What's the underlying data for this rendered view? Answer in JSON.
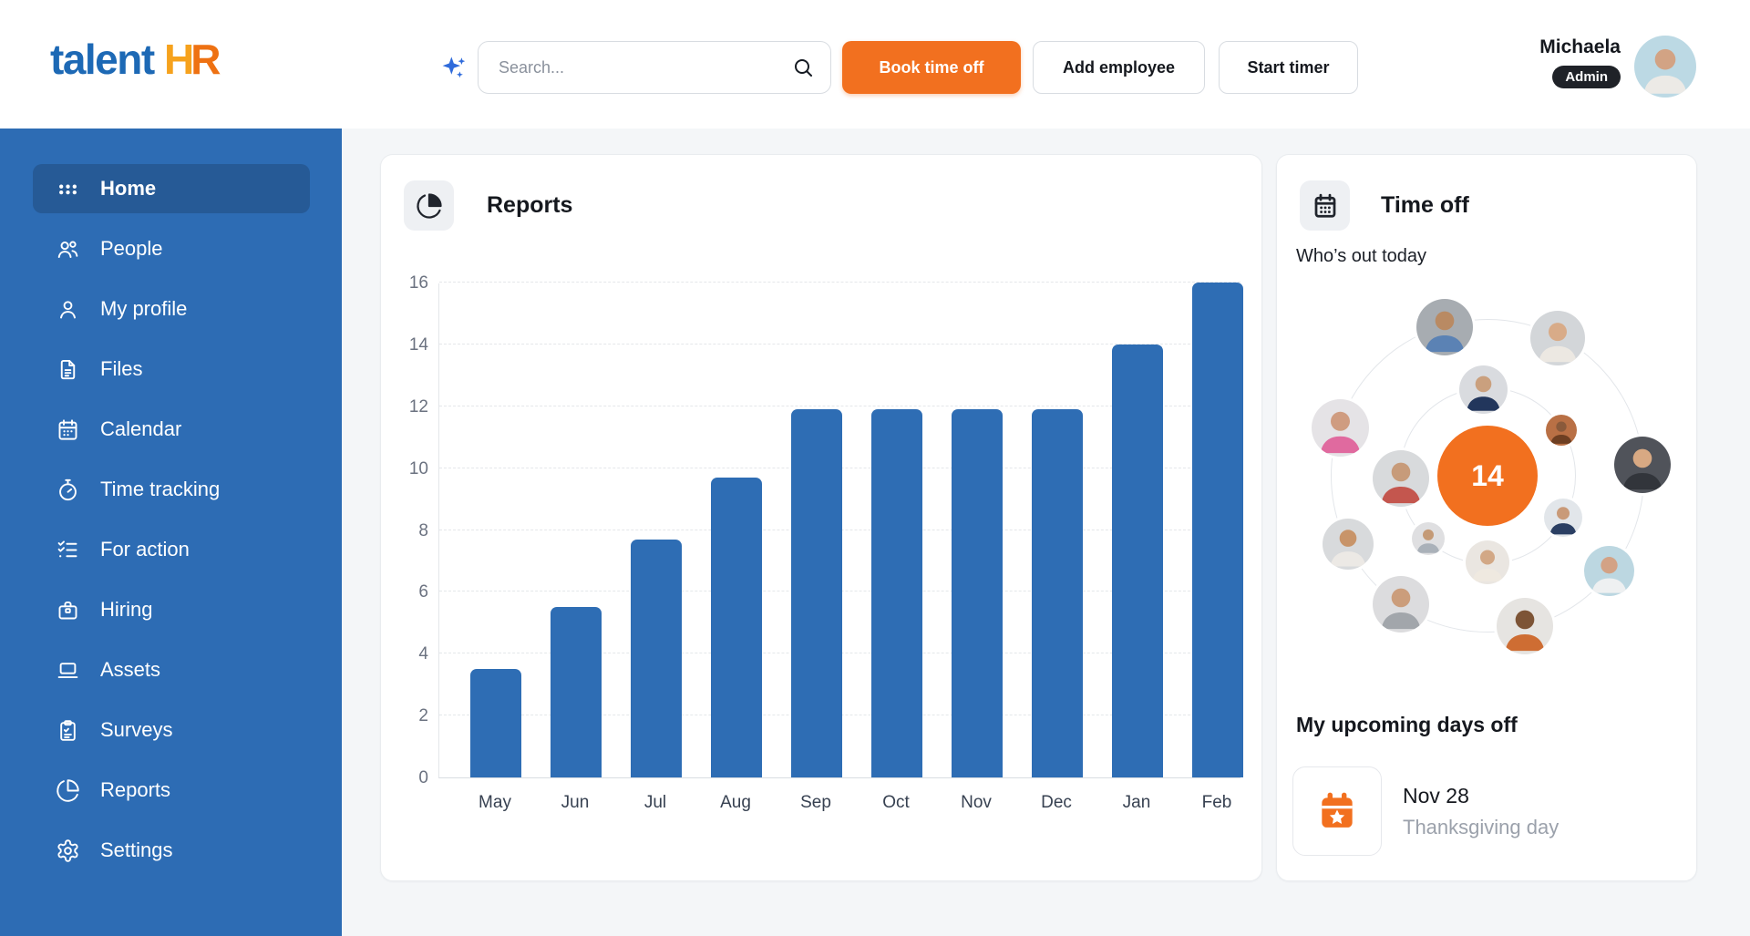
{
  "brand": {
    "part1": "talent",
    "part2_h": "H",
    "part2_r": "R"
  },
  "topbar": {
    "search_placeholder": "Search...",
    "buttons": [
      {
        "label": "Book time off",
        "variant": "primary"
      },
      {
        "label": "Add employee",
        "variant": "ghost"
      },
      {
        "label": "Start timer",
        "variant": "ghost"
      }
    ],
    "user": {
      "name": "Michaela",
      "role_badge": "Admin",
      "avatar": {
        "bg": "#bcd9e4",
        "skin": "#d2a384",
        "top": "#eceae6"
      }
    }
  },
  "sidebar": {
    "items": [
      {
        "label": "Home",
        "icon": "grid-dots",
        "active": true
      },
      {
        "label": "People",
        "icon": "users",
        "active": false
      },
      {
        "label": "My profile",
        "icon": "user",
        "active": false
      },
      {
        "label": "Files",
        "icon": "file",
        "active": false
      },
      {
        "label": "Calendar",
        "icon": "calendar",
        "active": false
      },
      {
        "label": "Time tracking",
        "icon": "timer",
        "active": false
      },
      {
        "label": "For action",
        "icon": "list-checks",
        "active": false
      },
      {
        "label": "Hiring",
        "icon": "briefcase",
        "active": false
      },
      {
        "label": "Assets",
        "icon": "laptop",
        "active": false
      },
      {
        "label": "Surveys",
        "icon": "clipboard",
        "active": false
      },
      {
        "label": "Reports",
        "icon": "pie-chart",
        "active": false
      },
      {
        "label": "Settings",
        "icon": "gear",
        "active": false
      }
    ]
  },
  "reports_card": {
    "title": "Reports",
    "icon": "pie-chart"
  },
  "chart_data": {
    "type": "bar",
    "categories": [
      "May",
      "Jun",
      "Jul",
      "Aug",
      "Sep",
      "Oct",
      "Nov",
      "Dec",
      "Jan",
      "Feb"
    ],
    "values": [
      3.5,
      5.5,
      7.7,
      9.7,
      11.9,
      11.9,
      11.9,
      11.9,
      14,
      16
    ],
    "title": "Reports",
    "xlabel": "",
    "ylabel": "",
    "ylim": [
      0,
      16
    ],
    "ytick_step": 2,
    "grid": "horizontal-dashed",
    "legend": "none",
    "bar_color": "#2e6db4"
  },
  "timeoff_card": {
    "title": "Time off",
    "icon": "calendar",
    "subtitle": "Who’s out today",
    "count": "14",
    "avatars": [
      {
        "ring": "inner",
        "angle": 357,
        "size": 53,
        "bg": "#d9dbdf",
        "skin": "#caa07e",
        "top": "#22365c"
      },
      {
        "ring": "inner",
        "angle": 58,
        "size": 34,
        "bg": "#b97045",
        "skin": "#8a5a3b",
        "top": "#6e3f22"
      },
      {
        "ring": "inner",
        "angle": 119,
        "size": 42,
        "bg": "#e2e6ea",
        "skin": "#c99a78",
        "top": "#2b3f63"
      },
      {
        "ring": "inner",
        "angle": 180,
        "size": 48,
        "bg": "#eae6e1",
        "skin": "#d2a886",
        "top": "#efe9e0"
      },
      {
        "ring": "inner",
        "angle": 223,
        "size": 36,
        "bg": "#dfdfe1",
        "skin": "#c49a76",
        "top": "#aab1b9"
      },
      {
        "ring": "inner",
        "angle": 268,
        "size": 62,
        "bg": "#d8dadc",
        "skin": "#c79b7a",
        "top": "#c4564e"
      },
      {
        "ring": "outer",
        "angle": 344,
        "size": 62,
        "bg": "#a7acb1",
        "skin": "#b98a63",
        "top": "#5b82b4"
      },
      {
        "ring": "outer",
        "angle": 27,
        "size": 60,
        "bg": "#d3d6d9",
        "skin": "#d8ab88",
        "top": "#ece8e2"
      },
      {
        "ring": "outer",
        "angle": 86,
        "size": 62,
        "bg": "#50535a",
        "skin": "#d8a983",
        "top": "#32353b"
      },
      {
        "ring": "outer",
        "angle": 128,
        "size": 55,
        "bg": "#bcd7e1",
        "skin": "#d3a285",
        "top": "#eef0f1"
      },
      {
        "ring": "outer",
        "angle": 166,
        "size": 62,
        "bg": "#e6e4e1",
        "skin": "#7d5436",
        "top": "#ce6d33"
      },
      {
        "ring": "outer",
        "angle": 214,
        "size": 62,
        "bg": "#dcdcde",
        "skin": "#cb9d7b",
        "top": "#a2a6ab"
      },
      {
        "ring": "outer",
        "angle": 244,
        "size": 56,
        "bg": "#d8dadc",
        "skin": "#c89469",
        "top": "#ece9e5"
      },
      {
        "ring": "outer",
        "angle": 288,
        "size": 63,
        "bg": "#e5e3e6",
        "skin": "#cf9c80",
        "top": "#e06a9f"
      }
    ],
    "upcoming_title": "My upcoming days off",
    "upcoming": [
      {
        "date": "Nov 28",
        "label": "Thanksgiving day"
      }
    ]
  },
  "colors": {
    "page_bg": "#f4f6f8",
    "sidebar_blue": "#2d6cb4",
    "sidebar_active": "#265a96",
    "accent_orange": "#f2701f",
    "bar_blue": "#2e6db4",
    "logo_blue": "#1d69b5",
    "logo_orange_h": "#f6a21d",
    "logo_orange_r": "#ee7112",
    "badge_dark": "#1f2228",
    "text_dark": "#15181e",
    "text_gray": "#9ba1ab",
    "sparkle_blue": "#2f6bdb"
  }
}
